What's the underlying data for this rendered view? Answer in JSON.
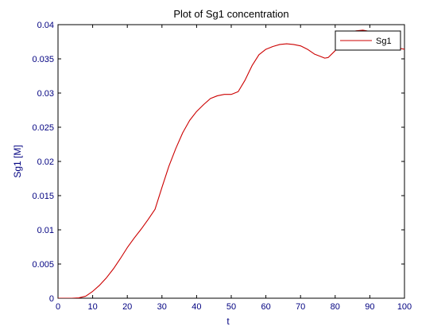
{
  "chart_data": {
    "type": "line",
    "title": "Plot of Sg1 concentration",
    "xlabel": "t",
    "ylabel": "Sg1 [M]",
    "xlim": [
      0,
      100
    ],
    "ylim": [
      0,
      0.04
    ],
    "xticks": [
      0,
      10,
      20,
      30,
      40,
      50,
      60,
      70,
      80,
      90,
      100
    ],
    "yticks": [
      0,
      0.005,
      0.01,
      0.015,
      0.02,
      0.025,
      0.03,
      0.035,
      0.04
    ],
    "xtick_labels": [
      "0",
      "10",
      "20",
      "30",
      "40",
      "50",
      "60",
      "70",
      "80",
      "90",
      "100"
    ],
    "ytick_labels": [
      "0",
      "0.005",
      "0.01",
      "0.015",
      "0.02",
      "0.025",
      "0.03",
      "0.035",
      "0.04"
    ],
    "grid": false,
    "legend_position": "top-right",
    "series": [
      {
        "name": "Sg1",
        "color": "#cc0000",
        "x": [
          0,
          2,
          4,
          6,
          8,
          10,
          12,
          14,
          16,
          18,
          20,
          22,
          24,
          26,
          28,
          30,
          32,
          34,
          36,
          38,
          40,
          42,
          44,
          46,
          48,
          50,
          52,
          54,
          56,
          58,
          60,
          62,
          64,
          66,
          68,
          70,
          72,
          74,
          76,
          77,
          78,
          80,
          82,
          84,
          86,
          88,
          90,
          92,
          94,
          96,
          98,
          100
        ],
        "y": [
          0,
          0,
          0,
          5e-05,
          0.0003,
          0.001,
          0.0019,
          0.003,
          0.0043,
          0.0058,
          0.0074,
          0.0088,
          0.0101,
          0.0115,
          0.013,
          0.0162,
          0.0193,
          0.0219,
          0.0242,
          0.026,
          0.0273,
          0.0283,
          0.0292,
          0.0296,
          0.0298,
          0.0298,
          0.0302,
          0.0319,
          0.034,
          0.0356,
          0.0364,
          0.0368,
          0.0371,
          0.0372,
          0.0371,
          0.0369,
          0.0364,
          0.0357,
          0.0353,
          0.0351,
          0.0352,
          0.0362,
          0.0378,
          0.0387,
          0.0391,
          0.0392,
          0.039,
          0.0383,
          0.0375,
          0.0369,
          0.0366,
          0.0364
        ]
      }
    ]
  }
}
